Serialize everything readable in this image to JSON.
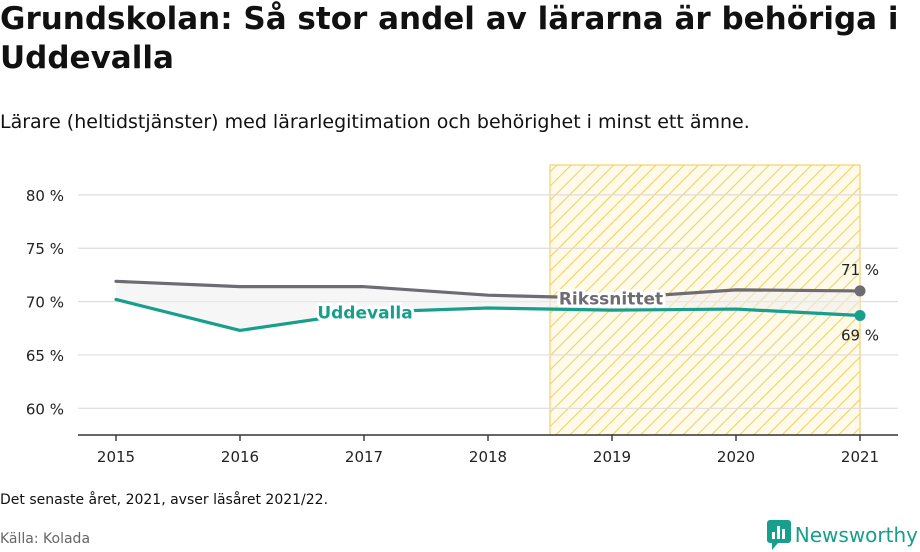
{
  "title": "Grundskolan: Så stor andel av lärarna är behöriga i Uddevalla",
  "subtitle": "Lärare (heltidstjänster) med lärarlegitimation och behörighet i minst ett ämne.",
  "note": "Det senaste året, 2021, avser läsåret 2021/22.",
  "source": "Källa: Kolada",
  "brand": "Newsworthy",
  "colors": {
    "accent": "#179e8c",
    "national": "#6e6b72",
    "highlight": "#f5c542",
    "grid": "#dddddd",
    "band": "#eeeeee"
  },
  "chart_data": {
    "type": "line",
    "x": [
      2015,
      2016,
      2017,
      2018,
      2019,
      2020,
      2021
    ],
    "ylim": [
      57.5,
      82.8
    ],
    "yticks": [
      60,
      65,
      70,
      75,
      80
    ],
    "ytick_labels": [
      "60 %",
      "65 %",
      "70 %",
      "75 %",
      "80 %"
    ],
    "xtick_labels": [
      "2015",
      "2016",
      "2017",
      "2018",
      "2019",
      "2020",
      "2021"
    ],
    "highlight_range": [
      2018.5,
      2021
    ],
    "series": [
      {
        "name": "Rikssnittet",
        "values": [
          71.9,
          71.4,
          71.4,
          70.6,
          70.3,
          71.1,
          71.0
        ],
        "end_label": "71 %"
      },
      {
        "name": "Uddevalla",
        "values": [
          70.2,
          67.3,
          69.0,
          69.4,
          69.2,
          69.3,
          68.7
        ],
        "end_label": "69 %"
      }
    ]
  }
}
